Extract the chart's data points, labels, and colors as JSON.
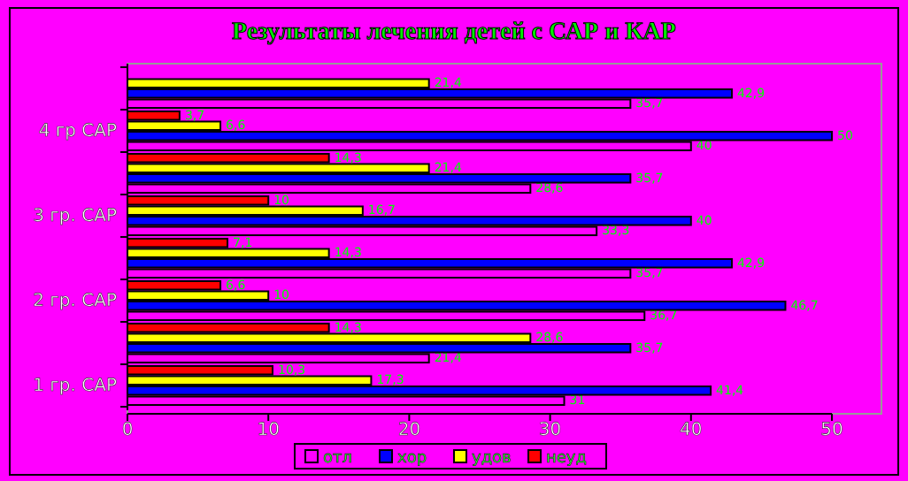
{
  "chart_data": {
    "type": "bar",
    "orientation": "horizontal",
    "title": "Результаты лечения детей с САР и КАР",
    "categories": [
      null,
      "4 гр САР",
      null,
      "3 гр. САР",
      null,
      "2 гр. САР",
      null,
      "1 гр. САР"
    ],
    "series": [
      {
        "name": "отл",
        "color": "#ff00ff",
        "values": [
          35.7,
          40,
          28.6,
          33.3,
          35.7,
          36.7,
          21.4,
          31
        ],
        "value_labels": [
          "35,7",
          "40",
          "28,6",
          "33,3",
          "35,7",
          "36,7",
          "21,4",
          "31"
        ]
      },
      {
        "name": "хор",
        "color": "#0000ff",
        "values": [
          42.9,
          50,
          35.7,
          40,
          42.9,
          46.7,
          35.7,
          41.4
        ],
        "value_labels": [
          "42,9",
          "50",
          "35,7",
          "40",
          "42,9",
          "46,7",
          "35,7",
          "41,4"
        ]
      },
      {
        "name": "удов",
        "color": "#ffff00",
        "values": [
          21.4,
          6.6,
          21.4,
          16.7,
          14.3,
          10,
          28.6,
          17.3
        ],
        "value_labels": [
          "21,4",
          "6,6",
          "21,4",
          "16,7",
          "14,3",
          "10",
          "28,6",
          "17,3"
        ]
      },
      {
        "name": "неуд",
        "color": "#ff0000",
        "values": [
          null,
          3.7,
          14.3,
          10,
          7.1,
          6.6,
          14.3,
          10.3
        ],
        "value_labels": [
          null,
          "3,7",
          "14,3",
          "10",
          "7,1",
          "6,6",
          "14,3",
          "10,3"
        ]
      }
    ],
    "xlim": [
      0,
      50
    ],
    "xticks": [
      0,
      10,
      20,
      30,
      40,
      50
    ],
    "legend": "bottom"
  }
}
